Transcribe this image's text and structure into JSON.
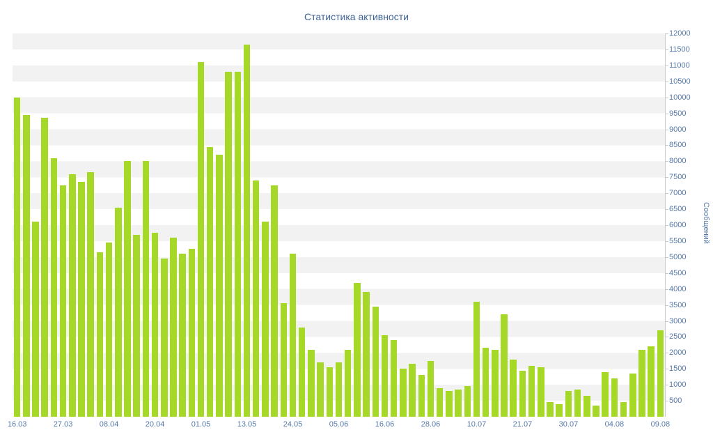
{
  "chart_data": {
    "type": "bar",
    "title": "Статистика активности",
    "xlabel": "",
    "ylabel": "Сообщений",
    "ylim": [
      0,
      12000
    ],
    "y_tick_step": 500,
    "y_ticks": [
      500,
      1000,
      1500,
      2000,
      2500,
      3000,
      3500,
      4000,
      4500,
      5000,
      5500,
      6000,
      6500,
      7000,
      7500,
      8000,
      8500,
      9000,
      9500,
      10000,
      10500,
      11000,
      11500,
      12000
    ],
    "x_tick_labels": [
      "16.03",
      "27.03",
      "08.04",
      "20.04",
      "01.05",
      "13.05",
      "24.05",
      "05.06",
      "16.06",
      "28.06",
      "10.07",
      "21.07",
      "30.07",
      "04.08",
      "09.08"
    ],
    "bars_per_x_label": 5,
    "grid": "striped-horizontal-bands",
    "legend": "none",
    "y_axis_side": "right",
    "values": [
      10000,
      9450,
      6100,
      9350,
      8100,
      7250,
      7600,
      7350,
      7650,
      5150,
      5450,
      6550,
      8000,
      5700,
      8000,
      5750,
      4950,
      5600,
      5100,
      5250,
      11100,
      8450,
      8200,
      10800,
      10800,
      11650,
      7400,
      6100,
      7250,
      3550,
      5100,
      2800,
      2100,
      1700,
      1550,
      1700,
      2100,
      4200,
      3900,
      3450,
      2550,
      2400,
      1500,
      1650,
      1300,
      1750,
      900,
      800,
      850,
      950,
      3600,
      2150,
      2100,
      3200,
      1800,
      1450,
      1600,
      1550,
      450,
      400,
      800,
      850,
      650,
      350,
      1400,
      1200,
      450,
      1350,
      2100,
      2200,
      2700
    ],
    "colors": {
      "bar": "#a6d827",
      "stripe": "#f2f2f2",
      "axis_text": "#5578a8",
      "title_text": "#3e6294",
      "background": "#ffffff"
    }
  }
}
